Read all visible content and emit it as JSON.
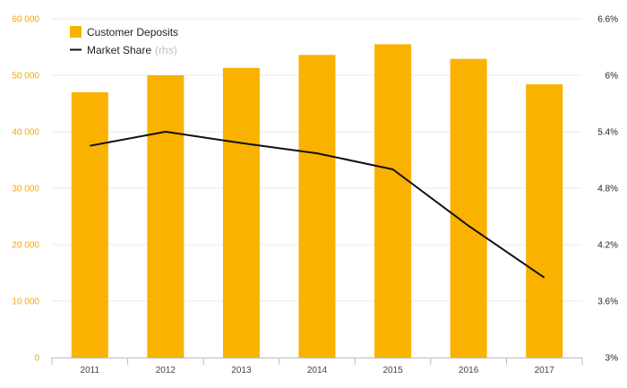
{
  "chart_data": {
    "type": "bar",
    "categories": [
      "2011",
      "2012",
      "2013",
      "2014",
      "2015",
      "2016",
      "2017"
    ],
    "series": [
      {
        "name": "Customer Deposits",
        "type": "bar",
        "axis": "left",
        "color": "#f9b200",
        "values": [
          47000,
          50000,
          51300,
          53600,
          55500,
          52900,
          48400
        ]
      },
      {
        "name": "Market Share",
        "name_note": "(rhs)",
        "type": "line",
        "axis": "right",
        "color": "#111111",
        "values": [
          5.25,
          5.4,
          5.28,
          5.17,
          5.0,
          4.4,
          3.85
        ]
      }
    ],
    "ylim_left": [
      0,
      60000
    ],
    "ylim_right": [
      3.0,
      6.6
    ],
    "yticks_left": [
      "0",
      "10 000",
      "20 000",
      "30 000",
      "40 000",
      "50 000",
      "60 000"
    ],
    "yticks_right": [
      "3%",
      "3.6%",
      "4.2%",
      "4.8%",
      "5.4%",
      "6%",
      "6.6%"
    ],
    "grid": true,
    "legend_position": "top-left",
    "colors": {
      "left_tick": "#f2a900",
      "grid": "#e8e8e8",
      "axis": "#bbbbbb"
    }
  }
}
